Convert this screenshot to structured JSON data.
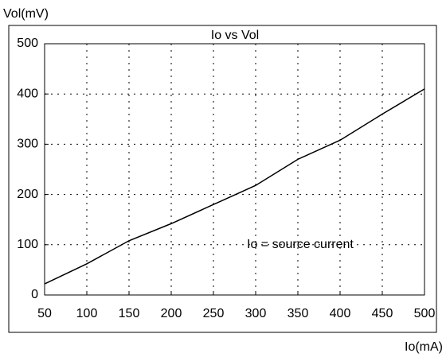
{
  "chart_data": {
    "type": "line",
    "title": "Io vs Vol",
    "xlabel": "Io(mA)",
    "ylabel": "Vol(mV)",
    "annotation": "Io = source current",
    "x": [
      50,
      100,
      150,
      200,
      250,
      300,
      350,
      400,
      450,
      500
    ],
    "series": [
      {
        "name": "Vol",
        "color": "#000000",
        "values": [
          22,
          62,
          108,
          142,
          180,
          218,
          270,
          308,
          360,
          410
        ]
      }
    ],
    "xlim": [
      50,
      500
    ],
    "xticks": [
      50,
      100,
      150,
      200,
      250,
      300,
      350,
      400,
      450,
      500
    ],
    "ylim": [
      0,
      500
    ],
    "yticks": [
      0,
      100,
      200,
      300,
      400,
      500
    ],
    "grid": true
  }
}
